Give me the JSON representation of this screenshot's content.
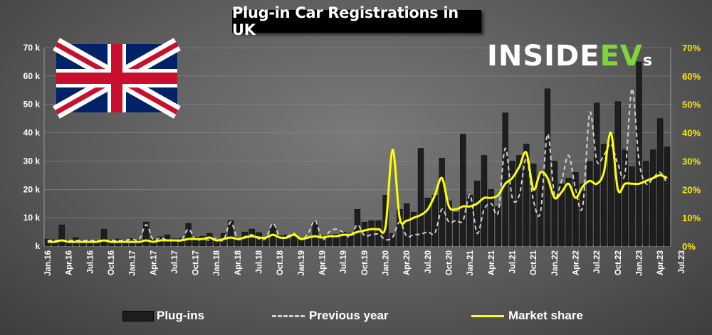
{
  "title": "Plug-in Car Registrations in UK",
  "logo": {
    "main": "INSIDE",
    "ev": "EV",
    "s": "s"
  },
  "colors": {
    "bars": "#1e1e1e",
    "previous_year": "#d0d0d0",
    "market_share": "#ffff00"
  },
  "legend": {
    "bars": "Plug-ins",
    "previous": "Previous year",
    "share": "Market share"
  },
  "chart_data": {
    "type": "bar",
    "ylim": [
      0,
      70000
    ],
    "y2lim": [
      0,
      70
    ],
    "y_ticks": [
      "k",
      "10 k",
      "20 k",
      "30 k",
      "40 k",
      "50 k",
      "60 k",
      "70 k"
    ],
    "y2_ticks": [
      "0%",
      "10%",
      "20%",
      "30%",
      "40%",
      "50%",
      "60%",
      "70%"
    ],
    "x_labels": [
      "Jan.16",
      "Apr.16",
      "Jul.16",
      "Oct.16",
      "Jan.17",
      "Apr.17",
      "Jul.17",
      "Oct.17",
      "Jan.18",
      "Apr.18",
      "Jul.18",
      "Oct.18",
      "Jan.19",
      "Apr.19",
      "Jul.19",
      "Oct.19",
      "Jan.20",
      "Apr.20",
      "Jul.20",
      "Oct.20",
      "Jan.21",
      "Apr.21",
      "Jul.21",
      "Oct.21",
      "Jan.22",
      "Apr.22",
      "Jul.22",
      "Oct.22",
      "Jan.23",
      "Apr.23",
      "Jul.23"
    ],
    "series": [
      {
        "name": "Plug-ins",
        "values": [
          2500,
          2300,
          7500,
          2200,
          3000,
          2100,
          2200,
          2000,
          6000,
          2200,
          2500,
          2100,
          2700,
          2200,
          8500,
          2500,
          3300,
          4000,
          2600,
          2800,
          8000,
          3200,
          3500,
          4500,
          2300,
          4500,
          9000,
          2300,
          5000,
          6000,
          4800,
          3300,
          7500,
          3700,
          4000,
          4200,
          2300,
          3100,
          8500,
          3500,
          4000,
          4200,
          5000,
          4600,
          13000,
          8500,
          9000,
          9000,
          18000,
          4500,
          13000,
          15000,
          12000,
          34500,
          17000,
          18000,
          31000,
          16000,
          12000,
          39500,
          18000,
          23000,
          32000,
          20000,
          14000,
          47000,
          30000,
          32000,
          36000,
          29000,
          25500,
          55500,
          30000,
          22000,
          24000,
          26000,
          22000,
          30000,
          50500,
          36000,
          39500,
          51000,
          34000,
          28000,
          65000,
          30000,
          34000,
          45000,
          35000
        ],
        "share": [
          1.5,
          1.5,
          2,
          1.5,
          1.5,
          1.5,
          1.5,
          1.5,
          2,
          1.5,
          1.5,
          1.5,
          1.5,
          1.5,
          2,
          1.5,
          2,
          2,
          2,
          2,
          2.5,
          2.5,
          2.5,
          3,
          2,
          2.5,
          3,
          2.5,
          3,
          3.5,
          3,
          3,
          4,
          3,
          3,
          4,
          2.5,
          3,
          3.5,
          3,
          3.5,
          3.5,
          4,
          4,
          5,
          5.5,
          6,
          6,
          7,
          34,
          10,
          9,
          10,
          11,
          13,
          18,
          24,
          14,
          13,
          14,
          14,
          15,
          17,
          17,
          18,
          22,
          24,
          28,
          33,
          20,
          26,
          24,
          17,
          19,
          22,
          17,
          21,
          23,
          22,
          26,
          40,
          20,
          22,
          22,
          22,
          23,
          24,
          25,
          24
        ]
      },
      {
        "name": "Previous year",
        "values": [
          2000,
          2000,
          2000,
          2000,
          2000,
          2000,
          2000,
          2000,
          2000,
          2000,
          2000,
          2000,
          2500,
          2300,
          7500,
          2200,
          3000,
          2100,
          2200,
          2000,
          6000,
          2200,
          2500,
          2100,
          2700,
          2200,
          8500,
          2500,
          3300,
          4000,
          2600,
          2800,
          8000,
          3200,
          3500,
          4500,
          2300,
          4500,
          9000,
          2300,
          5000,
          6000,
          4800,
          3300,
          7500,
          3700,
          4000,
          4200,
          2300,
          3100,
          8500,
          3500,
          4000,
          4200,
          5000,
          4600,
          13000,
          8500,
          9000,
          9000,
          18000,
          4500,
          13000,
          15000,
          12000,
          34500,
          17000,
          18000,
          31000,
          16000,
          12000,
          39500,
          18000,
          23000,
          32000,
          20000,
          14000,
          47000,
          30000,
          32000,
          36000,
          29000,
          25500,
          55500,
          30000,
          22000,
          24000,
          26000,
          22000
        ]
      }
    ]
  }
}
